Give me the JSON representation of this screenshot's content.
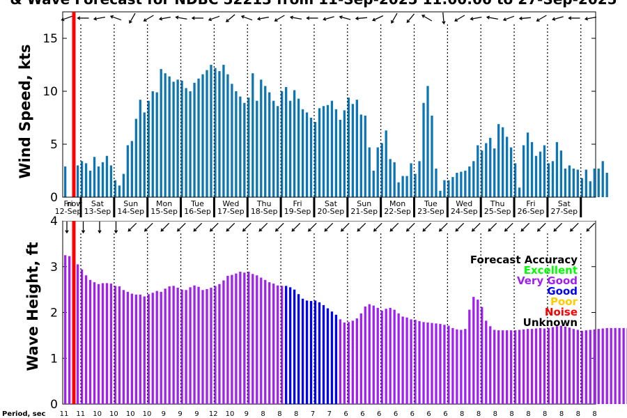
{
  "title": "& Wave Forecast for NDBC 52213 from 11-Sep-2025 11:00:00 to 27-Sep-2025",
  "now_label": "now",
  "period_label": "Period, sec",
  "legend": {
    "title": "Forecast Accuracy",
    "items": [
      {
        "label": "Excellent",
        "color": "#00ff00"
      },
      {
        "label": "Very Good",
        "color": "#a020f0"
      },
      {
        "label": "Good",
        "color": "#0000ff"
      },
      {
        "label": "Poor",
        "color": "#ffcc00"
      },
      {
        "label": "Noise",
        "color": "#ff0000"
      },
      {
        "label": "Unknown",
        "color": "#000000"
      }
    ]
  },
  "days": [
    {
      "dow": "Fri",
      "date": "12-Sep"
    },
    {
      "dow": "Sat",
      "date": "13-Sep"
    },
    {
      "dow": "Sun",
      "date": "14-Sep"
    },
    {
      "dow": "Mon",
      "date": "15-Sep"
    },
    {
      "dow": "Tue",
      "date": "16-Sep"
    },
    {
      "dow": "Wed",
      "date": "17-Sep"
    },
    {
      "dow": "Thu",
      "date": "18-Sep"
    },
    {
      "dow": "Fri",
      "date": "19-Sep"
    },
    {
      "dow": "Sat",
      "date": "20-Sep"
    },
    {
      "dow": "Sun",
      "date": "21-Sep"
    },
    {
      "dow": "Mon",
      "date": "22-Sep"
    },
    {
      "dow": "Tue",
      "date": "23-Sep"
    },
    {
      "dow": "Wed",
      "date": "24-Sep"
    },
    {
      "dow": "Thu",
      "date": "25-Sep"
    },
    {
      "dow": "Fri",
      "date": "26-Sep"
    },
    {
      "dow": "Sat",
      "date": "27-Sep"
    }
  ],
  "periods": [
    "11",
    "11",
    "10",
    "10",
    "10",
    "10",
    "9",
    "9",
    "9",
    "12",
    "10",
    "9",
    "8",
    "8",
    "8",
    "7",
    "7",
    "6",
    "6",
    "6",
    "6",
    "6",
    "6",
    "6",
    "8",
    "8",
    "8",
    "8",
    "8",
    "8",
    "8",
    "8",
    "8"
  ],
  "colors": {
    "wind": "#0b75b5",
    "wave_very_good": "#a020f0",
    "wave_good": "#0000ff",
    "now": "#ff0000"
  },
  "chart_data": [
    {
      "type": "bar",
      "ylabel": "Wind Speed, kts",
      "ylim": [
        0,
        17.5
      ],
      "yticks": [
        0,
        5,
        10,
        15
      ],
      "x_start": "11-Sep-2025 11:00",
      "step_hours": 3,
      "values": [
        2.9,
        0,
        1.5,
        3.0,
        3.4,
        3.2,
        2.5,
        3.8,
        2.9,
        3.3,
        3.9,
        3.0,
        1.6,
        1.1,
        2.2,
        4.9,
        5.3,
        7.4,
        9.2,
        8.0,
        9.1,
        10.0,
        9.9,
        12.1,
        11.7,
        11.4,
        10.9,
        11.1,
        11.0,
        10.3,
        10.0,
        10.8,
        11.2,
        11.6,
        12.0,
        12.5,
        12.2,
        11.9,
        12.5,
        11.6,
        10.7,
        10.0,
        9.5,
        8.9,
        9.4,
        11.7,
        9.1,
        11.1,
        10.5,
        9.9,
        9.1,
        8.6,
        10.0,
        10.4,
        9.1,
        10.1,
        9.3,
        8.3,
        8.0,
        7.5,
        7.1,
        8.4,
        8.6,
        8.7,
        9.1,
        8.3,
        7.3,
        8.2,
        9.4,
        8.8,
        9.2,
        7.8,
        7.7,
        4.7,
        2.5,
        4.7,
        5.1,
        6.3,
        3.6,
        3.3,
        1.4,
        2.0,
        2.0,
        3.2,
        2.2,
        3.4,
        8.9,
        10.5,
        7.7,
        2.7,
        0.6,
        1.6,
        1.6,
        1.9,
        2.3,
        2.4,
        2.5,
        2.9,
        3.4,
        4.9,
        4.4,
        5.1,
        5.6,
        4.6,
        6.9,
        6.6,
        5.7,
        4.7,
        3.2,
        0.9,
        4.9,
        6.1,
        5.2,
        3.9,
        4.3,
        4.9,
        3.2,
        3.4,
        5.2,
        4.4,
        2.7,
        3.0,
        2.7,
        2.6,
        1.8,
        2.6,
        1.5,
        2.7,
        2.7,
        3.4,
        2.3
      ]
    },
    {
      "type": "bar",
      "ylabel": "Wave Height, ft",
      "ylim": [
        0,
        4
      ],
      "yticks": [
        0,
        1,
        2,
        3,
        4
      ],
      "x_start": "11-Sep-2025 11:00",
      "step_hours": 3,
      "accuracy": "Very Good",
      "good_range_index": [
        53,
        65
      ],
      "values": [
        3.25,
        3.23,
        3.08,
        3.05,
        2.94,
        2.81,
        2.71,
        2.66,
        2.62,
        2.64,
        2.64,
        2.63,
        2.58,
        2.57,
        2.49,
        2.45,
        2.41,
        2.39,
        2.39,
        2.35,
        2.4,
        2.43,
        2.47,
        2.45,
        2.52,
        2.57,
        2.58,
        2.54,
        2.5,
        2.49,
        2.55,
        2.59,
        2.56,
        2.49,
        2.51,
        2.54,
        2.58,
        2.62,
        2.7,
        2.8,
        2.82,
        2.85,
        2.89,
        2.87,
        2.89,
        2.84,
        2.81,
        2.76,
        2.71,
        2.66,
        2.63,
        2.59,
        2.58,
        2.58,
        2.55,
        2.5,
        2.4,
        2.3,
        2.26,
        2.25,
        2.26,
        2.22,
        2.16,
        2.09,
        2.02,
        1.95,
        1.85,
        1.78,
        1.79,
        1.82,
        1.87,
        1.98,
        2.13,
        2.18,
        2.15,
        2.1,
        2.04,
        2.08,
        2.1,
        2.06,
        1.98,
        1.91,
        1.89,
        1.85,
        1.84,
        1.81,
        1.79,
        1.78,
        1.77,
        1.76,
        1.75,
        1.73,
        1.71,
        1.66,
        1.63,
        1.62,
        1.64,
        2.06,
        2.34,
        2.28,
        2.12,
        1.82,
        1.7,
        1.62,
        1.61,
        1.61,
        1.61,
        1.61,
        1.61,
        1.62,
        1.63,
        1.64,
        1.64,
        1.65,
        1.66,
        1.65,
        1.66,
        1.68,
        1.7,
        1.71,
        1.69,
        1.67,
        1.64,
        1.62,
        1.6,
        1.61,
        1.62,
        1.63,
        1.64,
        1.65,
        1.66,
        1.66,
        1.66,
        1.66,
        1.66,
        1.66
      ]
    }
  ]
}
